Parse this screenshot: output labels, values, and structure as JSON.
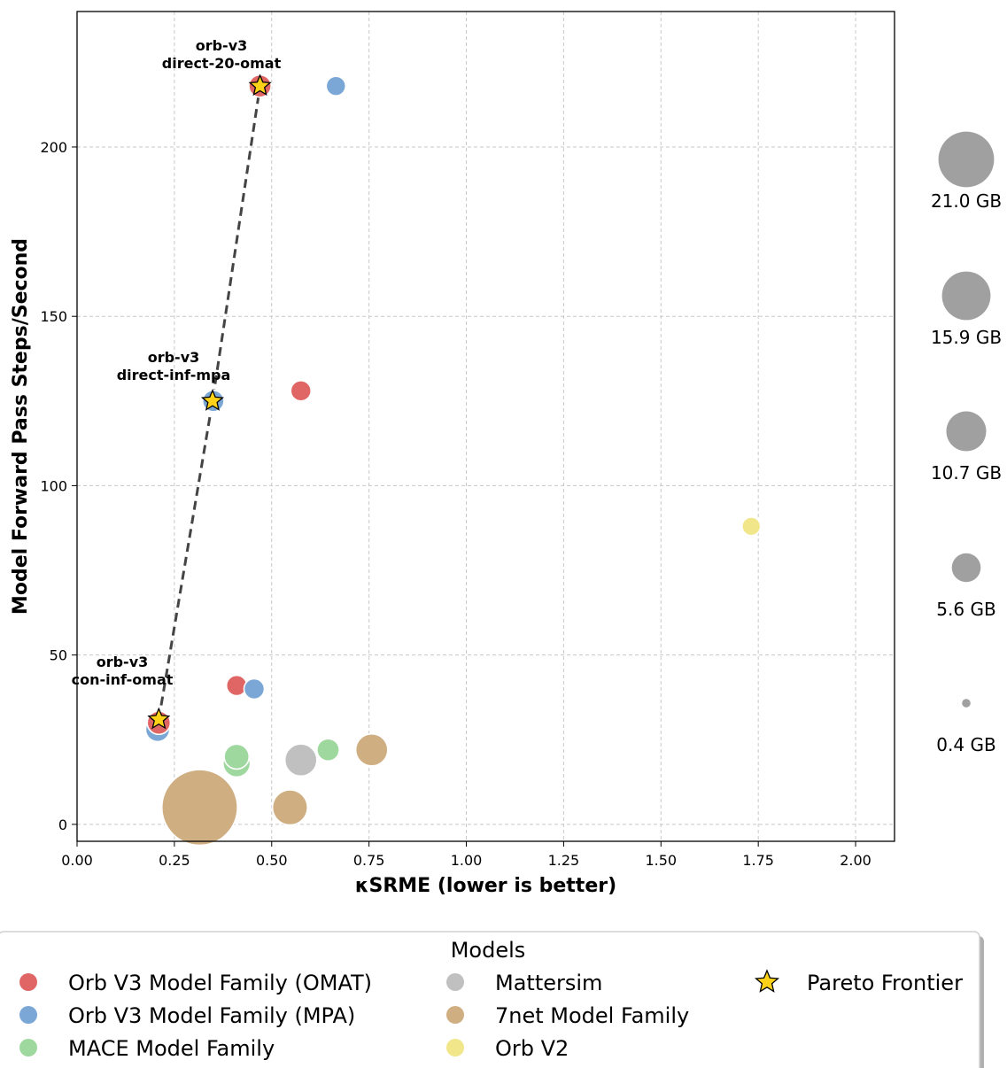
{
  "chart_data": {
    "type": "scatter",
    "xlabel": "κSRME (lower is better)",
    "ylabel": "Model Forward Pass Steps/Second",
    "xlim": [
      0,
      2.1
    ],
    "ylim": [
      -5,
      240
    ],
    "x_ticks": [
      "0.00",
      "0.25",
      "0.50",
      "0.75",
      "1.00",
      "1.25",
      "1.50",
      "1.75",
      "2.00"
    ],
    "y_ticks": [
      "0",
      "50",
      "100",
      "150",
      "200"
    ],
    "grid": true,
    "colors": {
      "omat": "#e06666",
      "mpa": "#7ba7d6",
      "mace": "#9fd89f",
      "mattersim": "#c0c0c0",
      "sevennet": "#cfae82",
      "orbv2": "#f2e68a",
      "pareto": "#ffd21a",
      "size_key": "#a0a0a0"
    },
    "series": [
      {
        "key": "omat",
        "points": [
          [
            0.47,
            218,
            1.2
          ],
          [
            0.575,
            128,
            1.0
          ],
          [
            0.41,
            41,
            1.0
          ],
          [
            0.21,
            30,
            1.3
          ]
        ]
      },
      {
        "key": "mpa",
        "points": [
          [
            0.665,
            218,
            0.9
          ],
          [
            0.35,
            125,
            1.1
          ],
          [
            0.455,
            40,
            1.0
          ],
          [
            0.207,
            28,
            1.4
          ]
        ]
      },
      {
        "key": "mace",
        "points": [
          [
            0.41,
            20,
            1.5
          ],
          [
            0.645,
            22,
            1.2
          ],
          [
            0.41,
            18,
            1.8
          ]
        ]
      },
      {
        "key": "mattersim",
        "points": [
          [
            0.575,
            19,
            2.5
          ]
        ]
      },
      {
        "key": "sevennet",
        "points": [
          [
            0.315,
            5,
            14.0
          ],
          [
            0.547,
            5,
            3.0
          ],
          [
            0.757,
            22,
            2.5
          ]
        ]
      },
      {
        "key": "orbv2",
        "points": [
          [
            1.732,
            88,
            0.8
          ]
        ]
      }
    ],
    "pareto_frontier": [
      [
        0.21,
        31
      ],
      [
        0.348,
        125
      ],
      [
        0.47,
        218
      ]
    ],
    "annotations": [
      {
        "lines": [
          "orb-v3",
          "direct-20-omat"
        ],
        "x": 0.47,
        "y": 218
      },
      {
        "lines": [
          "orb-v3",
          "direct-inf-mpa"
        ],
        "x": 0.348,
        "y": 125
      },
      {
        "lines": [
          "orb-v3",
          "con-inf-omat"
        ],
        "x": 0.21,
        "y": 31
      }
    ],
    "size_legend": [
      {
        "label": "21.0 GB",
        "value": 21.0
      },
      {
        "label": "15.9 GB",
        "value": 15.9
      },
      {
        "label": "10.7 GB",
        "value": 10.7
      },
      {
        "label": "5.6 GB",
        "value": 5.6
      },
      {
        "label": "0.4 GB",
        "value": 0.4
      }
    ],
    "legend": {
      "title": "Models",
      "placement": "bottom",
      "entries": [
        {
          "key": "omat",
          "label": "Orb V3 Model Family (OMAT)",
          "marker": "circle"
        },
        {
          "key": "mpa",
          "label": "Orb V3 Model Family (MPA)",
          "marker": "circle"
        },
        {
          "key": "mace",
          "label": "MACE Model Family",
          "marker": "circle"
        },
        {
          "key": "mattersim",
          "label": "Mattersim",
          "marker": "circle"
        },
        {
          "key": "sevennet",
          "label": "7net Model Family",
          "marker": "circle"
        },
        {
          "key": "orbv2",
          "label": "Orb V2",
          "marker": "circle"
        },
        {
          "key": "pareto",
          "label": "Pareto Frontier",
          "marker": "star"
        }
      ]
    }
  }
}
